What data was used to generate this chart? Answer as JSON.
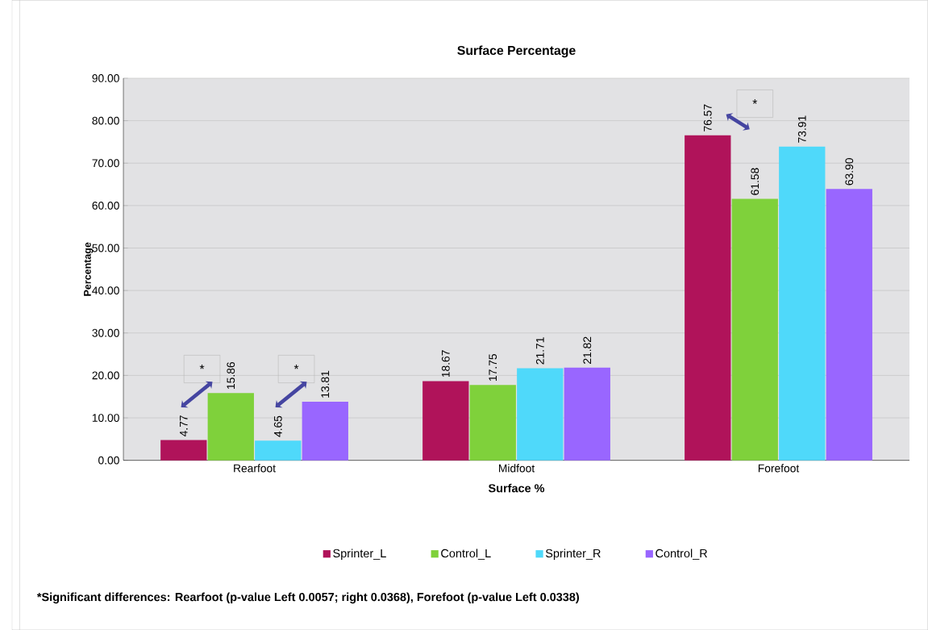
{
  "chart_data": {
    "type": "bar",
    "title": "Surface Percentage",
    "xlabel": "Surface %",
    "ylabel": "Percentage",
    "categories": [
      "Rearfoot",
      "Midfoot",
      "Forefoot"
    ],
    "series": [
      {
        "name": "Sprinter_L",
        "color": "#b0135a",
        "values": [
          4.77,
          18.67,
          76.57
        ],
        "value_labels": [
          "4.77",
          "18.67",
          "76.57"
        ]
      },
      {
        "name": "Control_L",
        "color": "#7fd13b",
        "values": [
          15.86,
          17.75,
          61.58
        ],
        "value_labels": [
          "15.86",
          "17.75",
          "61.58"
        ]
      },
      {
        "name": "Sprinter_R",
        "color": "#4fd9fa",
        "values": [
          4.65,
          21.71,
          73.91
        ],
        "value_labels": [
          "4.65",
          "21.71",
          "73.91"
        ]
      },
      {
        "name": "Control_R",
        "color": "#9966ff",
        "values": [
          13.81,
          21.82,
          63.9
        ],
        "value_labels": [
          "13.81",
          "21.82",
          "63.90"
        ]
      }
    ],
    "ylim": [
      0,
      90
    ],
    "yticks": [
      {
        "value": 0,
        "label": "0.00"
      },
      {
        "value": 10,
        "label": "10.00"
      },
      {
        "value": 20,
        "label": "20.00"
      },
      {
        "value": 30,
        "label": "30.00"
      },
      {
        "value": 40,
        "label": "40.00"
      },
      {
        "value": 50,
        "label": "50.00"
      },
      {
        "value": 60,
        "label": "60.00"
      },
      {
        "value": 70,
        "label": "70.00"
      },
      {
        "value": 80,
        "label": "80.00"
      },
      {
        "value": 90,
        "label": "90.00"
      }
    ],
    "grid": "y",
    "legend": "bottom",
    "annotations": [
      "*",
      "*",
      "*",
      "*Significant differences: Rearfoot (p-value Left  0.0057; right 0.0368),  Forefoot (p-value Left 0.0338)"
    ]
  }
}
